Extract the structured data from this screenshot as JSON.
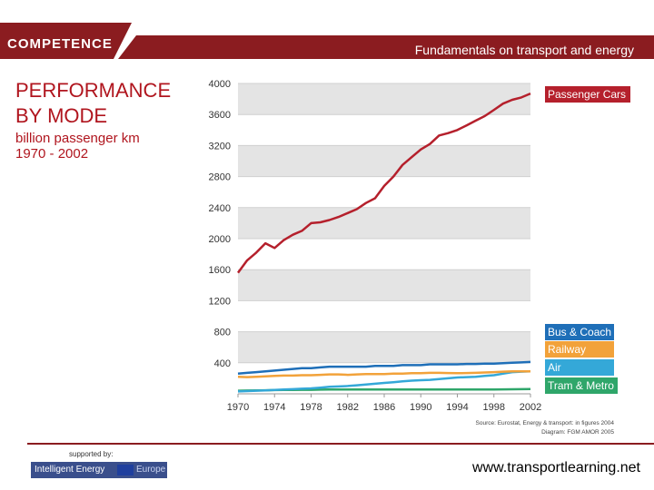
{
  "header": {
    "logo": "COMPETENCE",
    "title": "Fundamentals on transport and energy"
  },
  "slide": {
    "title_line1": "PERFORMANCE",
    "title_line2": "BY MODE",
    "subtitle_line1": "billion passenger km",
    "subtitle_line2": "1970 - 2002"
  },
  "footer": {
    "supported_by": "supported by:",
    "logo_text1": "Intelligent Energy",
    "logo_text2": "Europe",
    "website": "www.transportlearning.net"
  },
  "colors": {
    "brand": "#8b1c20",
    "cars": "#b5202c",
    "bus": "#1f6fb8",
    "rail": "#f2a23a",
    "air": "#34a8d8",
    "tram": "#2fa66a"
  },
  "chart_data": {
    "type": "line",
    "x": [
      1970,
      1971,
      1972,
      1973,
      1974,
      1975,
      1976,
      1977,
      1978,
      1979,
      1980,
      1981,
      1982,
      1983,
      1984,
      1985,
      1986,
      1987,
      1988,
      1989,
      1990,
      1991,
      1992,
      1993,
      1994,
      1995,
      1996,
      1997,
      1998,
      1999,
      2000,
      2001,
      2002
    ],
    "xticks": [
      "1970",
      "1974",
      "1978",
      "1982",
      "1986",
      "1990",
      "1994",
      "1998",
      "2002"
    ],
    "xlim": [
      1970,
      2002
    ],
    "ylim": [
      0,
      4000
    ],
    "yticks": [
      "400",
      "800",
      "1200",
      "1600",
      "2000",
      "2400",
      "2800",
      "3200",
      "3600",
      "4000"
    ],
    "series": [
      {
        "name": "Passenger Cars",
        "color": "#b5202c",
        "values": [
          1560,
          1720,
          1820,
          1940,
          1880,
          1980,
          2050,
          2100,
          2200,
          2210,
          2240,
          2280,
          2330,
          2380,
          2460,
          2520,
          2680,
          2800,
          2950,
          3050,
          3150,
          3220,
          3330,
          3360,
          3400,
          3460,
          3520,
          3580,
          3660,
          3740,
          3790,
          3820,
          3870
        ]
      },
      {
        "name": "Bus & Coach",
        "color": "#1f6fb8",
        "values": [
          260,
          270,
          280,
          290,
          300,
          310,
          320,
          330,
          330,
          340,
          350,
          350,
          350,
          350,
          350,
          360,
          360,
          360,
          370,
          370,
          370,
          380,
          380,
          380,
          380,
          385,
          385,
          390,
          390,
          395,
          400,
          405,
          410
        ]
      },
      {
        "name": "Railway",
        "color": "#f2a23a",
        "values": [
          220,
          215,
          220,
          225,
          230,
          235,
          235,
          240,
          240,
          245,
          250,
          250,
          245,
          250,
          255,
          255,
          255,
          260,
          260,
          265,
          265,
          270,
          270,
          268,
          265,
          268,
          270,
          275,
          280,
          285,
          290,
          290,
          290
        ]
      },
      {
        "name": "Air",
        "color": "#34a8d8",
        "values": [
          30,
          35,
          40,
          45,
          50,
          55,
          60,
          65,
          70,
          80,
          90,
          95,
          100,
          110,
          120,
          130,
          140,
          150,
          160,
          170,
          175,
          180,
          190,
          200,
          210,
          215,
          220,
          230,
          240,
          260,
          280,
          285,
          290
        ]
      },
      {
        "name": "Tram & Metro",
        "color": "#2fa66a",
        "values": [
          40,
          42,
          44,
          46,
          48,
          50,
          50,
          52,
          52,
          54,
          55,
          55,
          55,
          55,
          55,
          55,
          55,
          55,
          55,
          55,
          55,
          55,
          55,
          55,
          55,
          55,
          55,
          55,
          56,
          57,
          58,
          60,
          62
        ]
      }
    ],
    "source_line1": "Source: Eurostat, Energy & transport: in figures 2004",
    "source_line2": "Diagram: FGM AMOR 2005"
  }
}
